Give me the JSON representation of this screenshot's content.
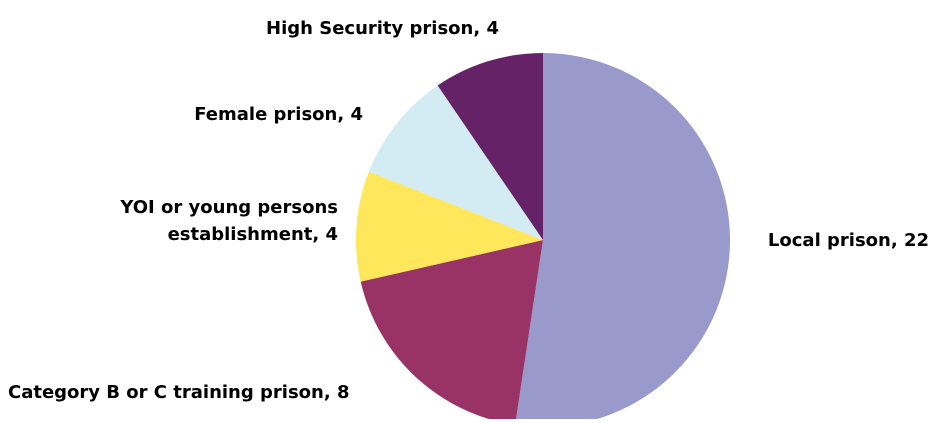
{
  "chart_data": {
    "type": "pie",
    "title": "",
    "slices": [
      {
        "label": "Local prison, 22",
        "name": "Local prison",
        "value": 22,
        "color": "#9999cc"
      },
      {
        "label": "Category B or C training prison, 8",
        "name": "Category B or C training prison",
        "value": 8,
        "color": "#993366"
      },
      {
        "label_lines": [
          "YOI or young persons",
          "establishment, 4"
        ],
        "name": "YOI or young persons establishment",
        "value": 4,
        "color": "#ffe75c"
      },
      {
        "label": "Female prison, 4",
        "name": "Female prison",
        "value": 4,
        "color": "#d3ebf3"
      },
      {
        "label": "High Security prison, 4",
        "name": "High Security prison",
        "value": 4,
        "color": "#662266"
      }
    ]
  }
}
